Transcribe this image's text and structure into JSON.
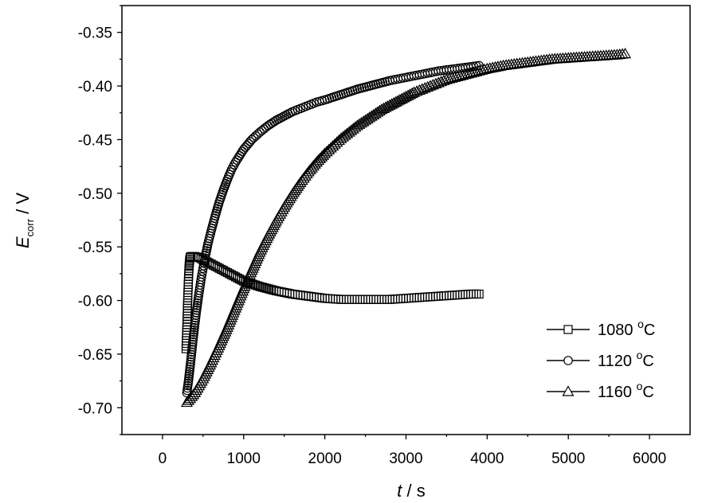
{
  "chart_data": {
    "type": "scatter",
    "xlabel": {
      "var": "t",
      "unit": " / s"
    },
    "ylabel": {
      "var": "E",
      "sub": "corr",
      "unit": " / V"
    },
    "xlim": [
      -500,
      6500
    ],
    "ylim": [
      -0.725,
      -0.325
    ],
    "xticks": [
      0,
      1000,
      2000,
      3000,
      4000,
      5000,
      6000
    ],
    "xtick_labels": [
      "0",
      "1000",
      "2000",
      "3000",
      "4000",
      "5000",
      "6000"
    ],
    "yticks": [
      -0.35,
      -0.4,
      -0.45,
      -0.5,
      -0.55,
      -0.6,
      -0.65,
      -0.7
    ],
    "ytick_labels": [
      "-0.35",
      "-0.40",
      "-0.45",
      "-0.50",
      "-0.55",
      "-0.60",
      "-0.65",
      "-0.70"
    ],
    "legend_position": "bottom-right",
    "grid": false,
    "series": [
      {
        "name": "1080 °C",
        "label_main": "1080 ",
        "label_sup": "o",
        "label_end": "C",
        "marker": "square",
        "x": [
          290,
          295,
          300,
          305,
          310,
          315,
          320,
          325,
          330,
          335,
          340,
          350,
          400,
          450,
          500,
          550,
          600,
          700,
          800,
          900,
          1000,
          1200,
          1400,
          1600,
          1800,
          2000,
          2200,
          2400,
          2600,
          2800,
          3000,
          3200,
          3400,
          3600,
          3800,
          3900
        ],
        "y": [
          -0.645,
          -0.635,
          -0.625,
          -0.612,
          -0.6,
          -0.59,
          -0.58,
          -0.572,
          -0.566,
          -0.562,
          -0.56,
          -0.559,
          -0.559,
          -0.56,
          -0.562,
          -0.564,
          -0.566,
          -0.57,
          -0.574,
          -0.578,
          -0.582,
          -0.587,
          -0.591,
          -0.594,
          -0.596,
          -0.598,
          -0.599,
          -0.599,
          -0.599,
          -0.599,
          -0.598,
          -0.597,
          -0.596,
          -0.595,
          -0.594,
          -0.594
        ]
      },
      {
        "name": "1120 °C",
        "label_main": "1120 ",
        "label_sup": "o",
        "label_end": "C",
        "marker": "circle",
        "x": [
          300,
          320,
          340,
          360,
          380,
          400,
          420,
          440,
          460,
          480,
          500,
          530,
          560,
          600,
          650,
          700,
          750,
          800,
          850,
          900,
          950,
          1000,
          1100,
          1200,
          1300,
          1400,
          1500,
          1600,
          1700,
          1800,
          1900,
          2000,
          2200,
          2400,
          2600,
          2800,
          3000,
          3200,
          3400,
          3600,
          3800,
          3900
        ],
        "y": [
          -0.686,
          -0.675,
          -0.662,
          -0.648,
          -0.634,
          -0.621,
          -0.609,
          -0.598,
          -0.588,
          -0.578,
          -0.57,
          -0.558,
          -0.547,
          -0.535,
          -0.521,
          -0.508,
          -0.497,
          -0.487,
          -0.478,
          -0.471,
          -0.465,
          -0.459,
          -0.45,
          -0.443,
          -0.437,
          -0.432,
          -0.428,
          -0.424,
          -0.421,
          -0.418,
          -0.415,
          -0.413,
          -0.408,
          -0.403,
          -0.399,
          -0.395,
          -0.392,
          -0.389,
          -0.386,
          -0.384,
          -0.382,
          -0.381
        ]
      },
      {
        "name": "1160 °C",
        "label_main": "1160 ",
        "label_sup": "o",
        "label_end": "C",
        "marker": "triangle",
        "x": [
          300,
          400,
          500,
          600,
          700,
          800,
          900,
          1000,
          1100,
          1200,
          1300,
          1400,
          1500,
          1600,
          1700,
          1800,
          1900,
          2000,
          2100,
          2200,
          2300,
          2400,
          2500,
          2600,
          2700,
          2800,
          2900,
          3000,
          3100,
          3200,
          3300,
          3400,
          3500,
          3600,
          3700,
          3800,
          3900,
          4000,
          4200,
          4400,
          4600,
          4800,
          5000,
          5200,
          5400,
          5600,
          5700
        ],
        "y": [
          -0.695,
          -0.686,
          -0.673,
          -0.658,
          -0.642,
          -0.625,
          -0.607,
          -0.589,
          -0.572,
          -0.555,
          -0.54,
          -0.526,
          -0.513,
          -0.501,
          -0.49,
          -0.48,
          -0.471,
          -0.463,
          -0.456,
          -0.449,
          -0.443,
          -0.437,
          -0.432,
          -0.427,
          -0.422,
          -0.418,
          -0.414,
          -0.41,
          -0.406,
          -0.403,
          -0.4,
          -0.397,
          -0.394,
          -0.392,
          -0.39,
          -0.388,
          -0.386,
          -0.384,
          -0.381,
          -0.379,
          -0.377,
          -0.375,
          -0.374,
          -0.373,
          -0.372,
          -0.371,
          -0.37
        ]
      }
    ]
  }
}
